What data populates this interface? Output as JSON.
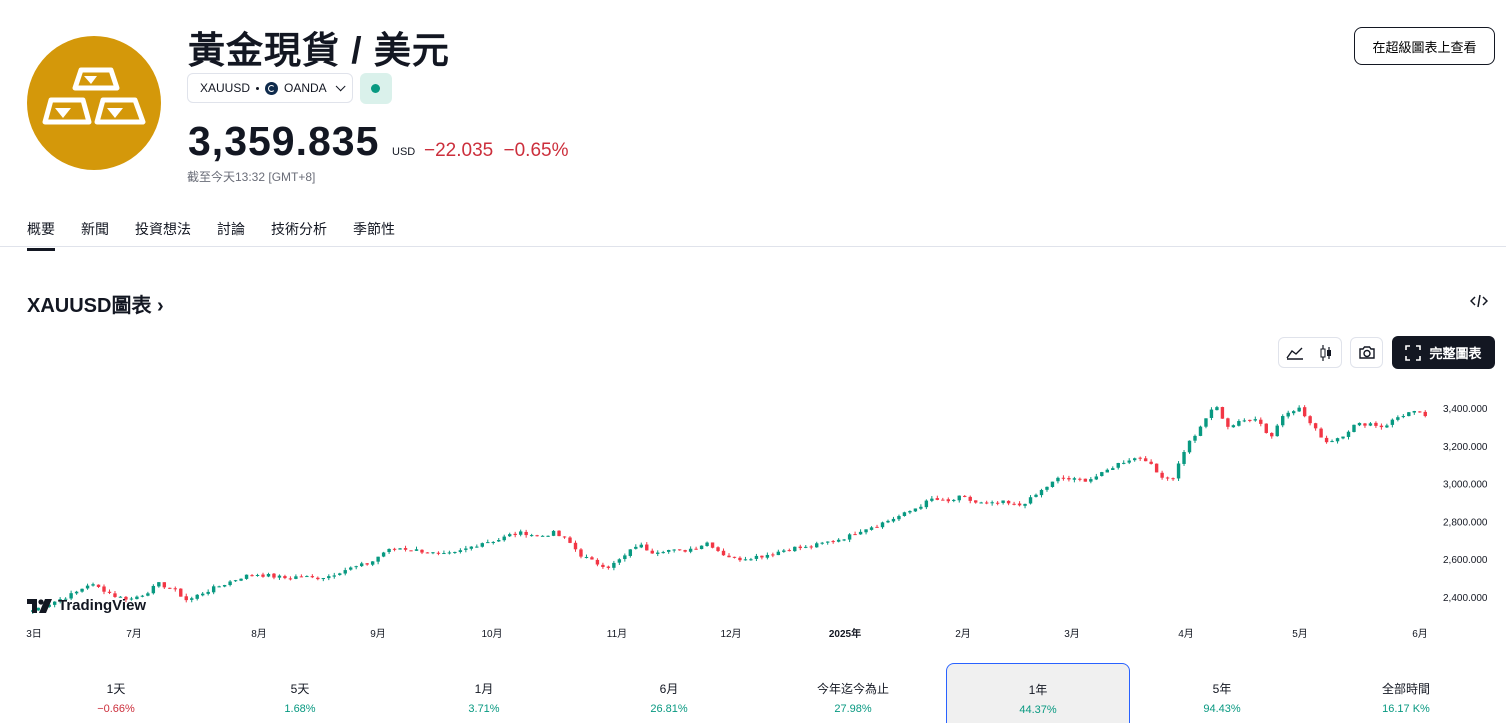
{
  "header": {
    "title": "黃金現貨 / 美元",
    "symbol": "XAUUSD",
    "exchange": "OANDA",
    "price": "3,359.835",
    "currency": "USD",
    "change": "−22.035",
    "change_pct": "−0.65%",
    "as_of": "截至今天13:32 [GMT+8]",
    "supercharts_label": "在超級圖表上查看"
  },
  "tabs": [
    {
      "label": "概要",
      "active": true
    },
    {
      "label": "新聞"
    },
    {
      "label": "投資想法"
    },
    {
      "label": "討論"
    },
    {
      "label": "技術分析"
    },
    {
      "label": "季節性"
    }
  ],
  "chart_section": {
    "title": "XAUUSD圖表",
    "full_chart_label": "完整圖表",
    "watermark": "TradingView"
  },
  "chart_data": {
    "type": "candlestick",
    "x_ticks": [
      "3日",
      "7月",
      "8月",
      "9月",
      "10月",
      "11月",
      "12月",
      "2025年",
      "2月",
      "3月",
      "4月",
      "5月",
      "6月"
    ],
    "y_ticks": [
      "3,400.000",
      "3,200.000",
      "3,000.000",
      "2,800.000",
      "2,600.000",
      "2,400.000"
    ],
    "ylim": [
      2300,
      3500
    ],
    "close_path": [
      2330,
      2360,
      2390,
      2420,
      2470,
      2440,
      2400,
      2390,
      2420,
      2470,
      2440,
      2380,
      2420,
      2450,
      2480,
      2510,
      2520,
      2510,
      2500,
      2510,
      2500,
      2510,
      2540,
      2560,
      2580,
      2640,
      2660,
      2650,
      2640,
      2620,
      2630,
      2660,
      2690,
      2700,
      2730,
      2740,
      2720,
      2740,
      2700,
      2620,
      2580,
      2560,
      2610,
      2680,
      2640,
      2650,
      2640,
      2660,
      2690,
      2630,
      2600,
      2610,
      2620,
      2640,
      2660,
      2660,
      2680,
      2700,
      2720,
      2760,
      2780,
      2810,
      2840,
      2880,
      2920,
      2900,
      2930,
      2900,
      2890,
      2900,
      2880,
      2920,
      2980,
      3030,
      3020,
      3020,
      3050,
      3100,
      3130,
      3140,
      3050,
      3020,
      3200,
      3290,
      3420,
      3300,
      3330,
      3350,
      3240,
      3380,
      3400,
      3300,
      3220,
      3250,
      3310,
      3320,
      3300,
      3350,
      3380,
      3360
    ]
  },
  "periods": [
    {
      "label": "1天",
      "value": "−0.66%",
      "dir": "neg"
    },
    {
      "label": "5天",
      "value": "1.68%",
      "dir": "pos"
    },
    {
      "label": "1月",
      "value": "3.71%",
      "dir": "pos"
    },
    {
      "label": "6月",
      "value": "26.81%",
      "dir": "pos"
    },
    {
      "label": "今年迄今為止",
      "value": "27.98%",
      "dir": "pos"
    },
    {
      "label": "1年",
      "value": "44.37%",
      "dir": "pos",
      "selected": true
    },
    {
      "label": "5年",
      "value": "94.43%",
      "dir": "pos"
    },
    {
      "label": "全部時間",
      "value": "16.17 K%",
      "dir": "pos"
    }
  ],
  "colors": {
    "up": "#089981",
    "down": "#F23645",
    "logo": "#D4980A"
  }
}
